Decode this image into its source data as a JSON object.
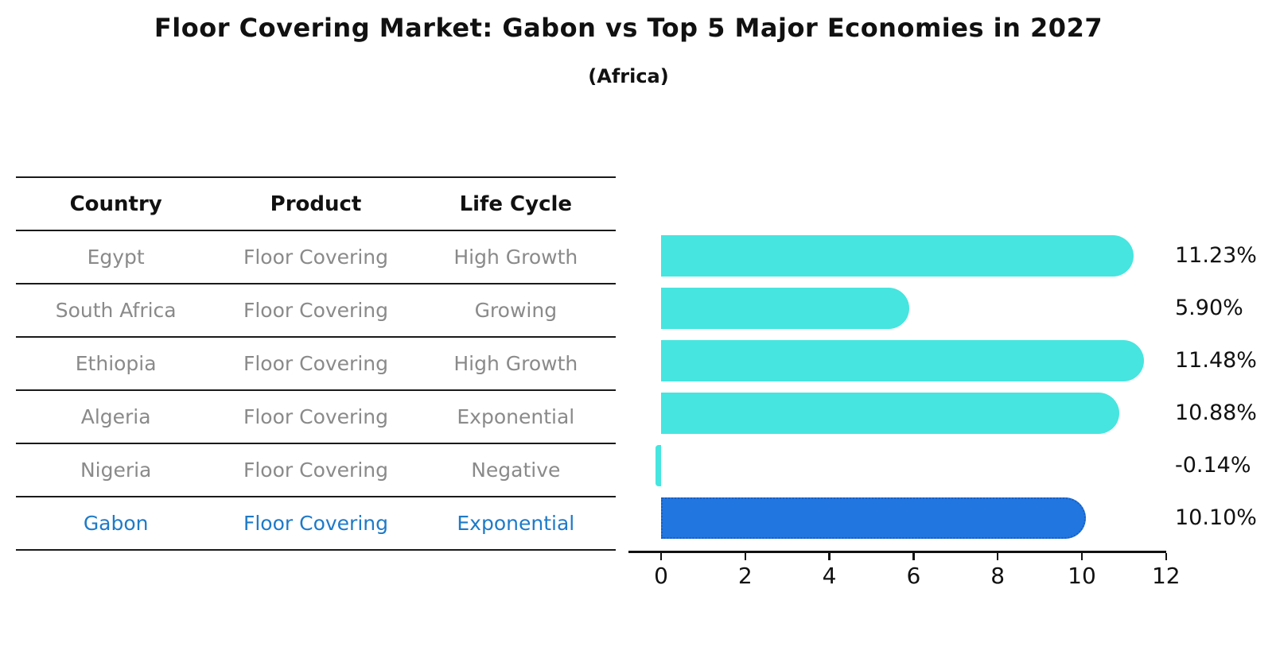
{
  "title": "Floor Covering Market: Gabon vs Top 5 Major Economies in 2027",
  "subtitle": "(Africa)",
  "table": {
    "headers": [
      "Country",
      "Product",
      "Life Cycle"
    ],
    "rows": [
      {
        "country": "Egypt",
        "product": "Floor Covering",
        "life_cycle": "High Growth",
        "highlight": false
      },
      {
        "country": "South Africa",
        "product": "Floor Covering",
        "life_cycle": "Growing",
        "highlight": false
      },
      {
        "country": "Ethiopia",
        "product": "Floor Covering",
        "life_cycle": "High Growth",
        "highlight": false
      },
      {
        "country": "Algeria",
        "product": "Floor Covering",
        "life_cycle": "Exponential",
        "highlight": false
      },
      {
        "country": "Nigeria",
        "product": "Floor Covering",
        "life_cycle": "Negative",
        "highlight": false
      },
      {
        "country": "Gabon",
        "product": "Floor Covering",
        "life_cycle": "Exponential",
        "highlight": true
      }
    ]
  },
  "chart_data": {
    "type": "bar",
    "orientation": "horizontal",
    "title": "Floor Covering Market: Gabon vs Top 5 Major Economies in 2027 (Africa)",
    "categories": [
      "Egypt",
      "South Africa",
      "Ethiopia",
      "Algeria",
      "Nigeria",
      "Gabon"
    ],
    "values": [
      11.23,
      5.9,
      11.48,
      10.88,
      -0.14,
      10.1
    ],
    "value_labels": [
      "11.23%",
      "5.90%",
      "11.48%",
      "10.88%",
      "-0.14%",
      "10.10%"
    ],
    "xticks": [
      "0",
      "2",
      "4",
      "6",
      "8",
      "10",
      "12"
    ],
    "xtick_values": [
      0,
      2,
      4,
      6,
      8,
      10,
      12
    ],
    "xlim": [
      -0.8,
      12
    ],
    "grid": false,
    "legend": "none",
    "colors": {
      "bar_default": "#46e5df",
      "bar_highlight": "#2176e0",
      "bar_highlight_border": "#1a5ec0",
      "highlight_text": "#1e7ac9",
      "table_text": "#8a8a8a",
      "axis_text": "#111111"
    }
  }
}
